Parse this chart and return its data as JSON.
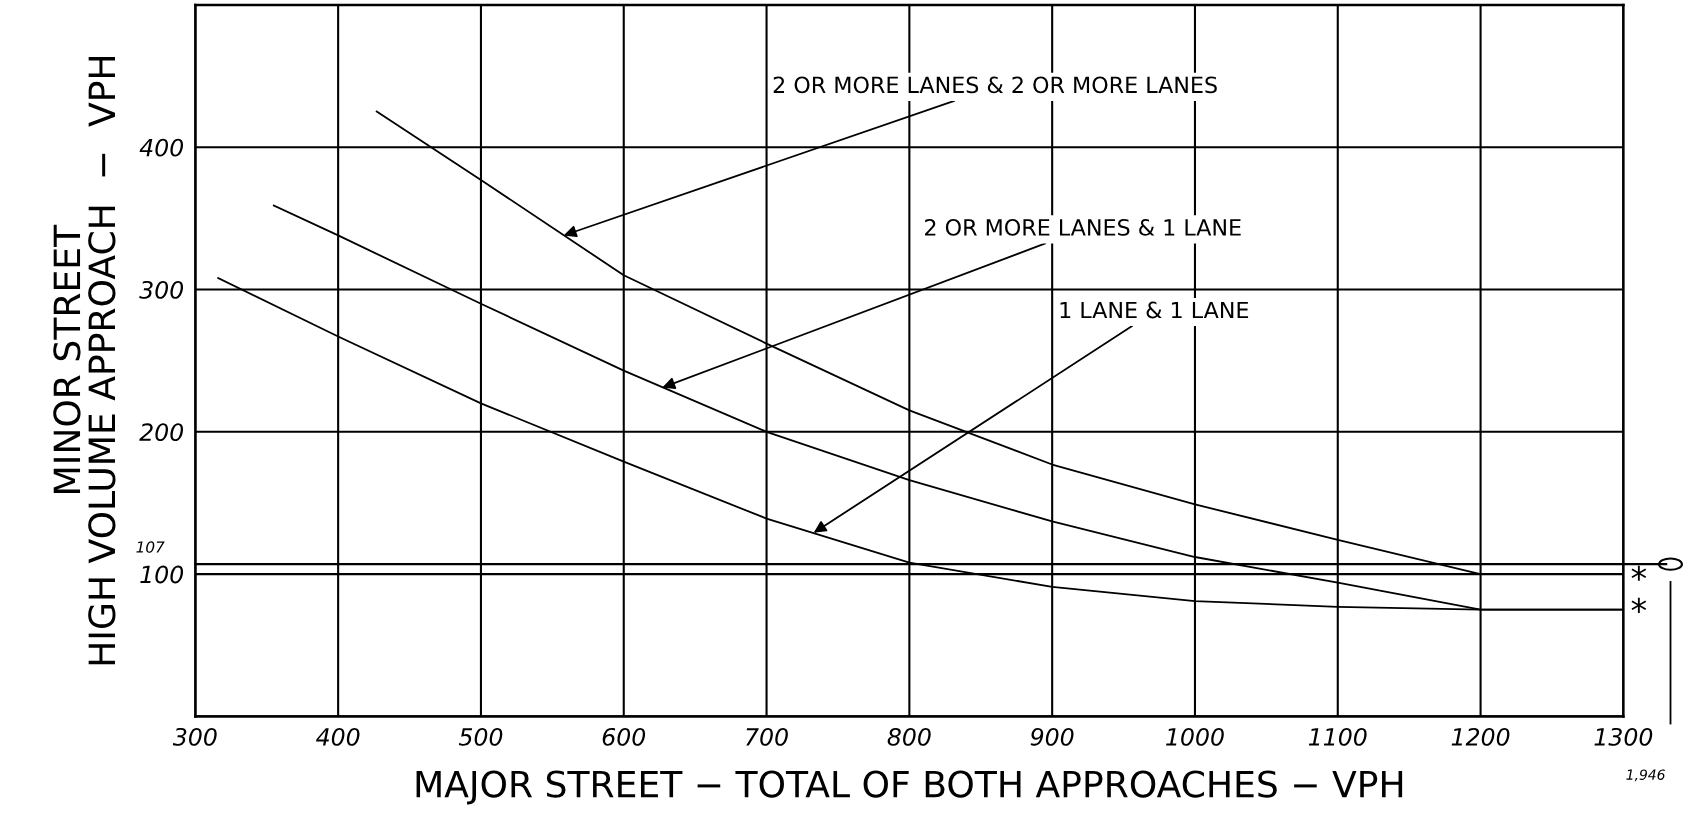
{
  "chart_data": {
    "type": "line",
    "xlabel": "MAJOR STREET − TOTAL OF BOTH APPROACHES − VPH",
    "ylabel": "MINOR STREET\nHIGH VOLUME APPROACH  −  VPH",
    "series": [
      {
        "color": "#000000",
        "x": [
          427,
          500,
          600,
          700,
          800,
          900,
          1000,
          1100,
          1200
        ],
        "values": [
          425,
          377,
          310,
          262,
          215,
          177,
          149,
          124,
          100
        ]
      },
      {
        "color": "#000000",
        "x": [
          355,
          400,
          500,
          600,
          700,
          800,
          900,
          1000,
          1100,
          1200,
          1300
        ],
        "values": [
          359,
          338,
          290,
          243,
          200,
          166,
          137,
          112,
          94,
          75,
          75
        ]
      },
      {
        "color": "#000000",
        "x": [
          316,
          400,
          500,
          600,
          700,
          800,
          900,
          1000,
          1100,
          1200,
          1300
        ],
        "values": [
          308,
          267,
          220,
          179,
          139,
          108,
          91,
          81,
          77,
          75,
          75
        ]
      }
    ],
    "xlim": [
      300,
      1300
    ],
    "ylim": [
      0,
      500
    ],
    "xticks": [
      300,
      400,
      500,
      600,
      700,
      800,
      900,
      1000,
      1100,
      1200,
      1300
    ],
    "yticks": [
      {
        "value": 0,
        "label": null
      },
      100,
      200,
      300,
      400,
      {
        "value": 500,
        "label": null
      }
    ],
    "grid": true,
    "marker": "none",
    "line_style": "solid",
    "ref_lines": [
      {
        "axis": "y",
        "value": 107,
        "label": "107",
        "color": "#000000"
      }
    ],
    "annotations": [
      {
        "text": "2 OR MORE LANES & 2 OR MORE LANES",
        "x": 558,
        "y": 338
      },
      {
        "text": "2 OR MORE LANES & 1 LANE",
        "x": 627,
        "y": 231
      },
      {
        "text": "1 LANE & 1 LANE",
        "x": 733,
        "y": 129
      },
      "*",
      "*",
      "1,946"
    ]
  }
}
